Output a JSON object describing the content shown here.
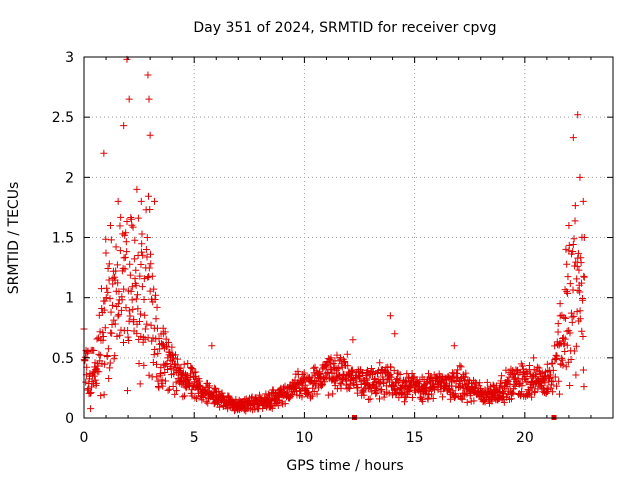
{
  "chart_data": {
    "type": "scatter",
    "title": "Day 351 of 2024, SRMTID for receiver cpvg",
    "xlabel": "GPS time / hours",
    "ylabel": "SRMTID / TECUs",
    "xlim": [
      0,
      24
    ],
    "ylim": [
      0,
      3
    ],
    "xticks": [
      0,
      5,
      10,
      15,
      20
    ],
    "yticks": [
      0,
      0.5,
      1,
      1.5,
      2,
      2.5,
      3
    ],
    "xtick_labels": [
      "0",
      "5",
      "10",
      "15",
      "20"
    ],
    "ytick_labels": [
      "0",
      "0.5",
      "1",
      "1.5",
      "2",
      "2.5",
      "3"
    ],
    "grid": true,
    "marker": "+",
    "color": "#e00000",
    "series": [
      {
        "name": "SRMTID",
        "profile": [
          [
            0.0,
            0.35
          ],
          [
            0.5,
            0.4
          ],
          [
            0.8,
            0.7
          ],
          [
            1.0,
            0.95
          ],
          [
            1.3,
            0.85
          ],
          [
            1.6,
            0.9
          ],
          [
            1.8,
            1.3
          ],
          [
            2.0,
            1.2
          ],
          [
            2.3,
            1.0
          ],
          [
            2.6,
            0.95
          ],
          [
            2.9,
            1.2
          ],
          [
            3.1,
            0.9
          ],
          [
            3.4,
            0.55
          ],
          [
            3.8,
            0.45
          ],
          [
            4.3,
            0.35
          ],
          [
            5.0,
            0.28
          ],
          [
            5.5,
            0.24
          ],
          [
            6.0,
            0.17
          ],
          [
            6.5,
            0.13
          ],
          [
            7.0,
            0.1
          ],
          [
            7.5,
            0.12
          ],
          [
            8.0,
            0.14
          ],
          [
            8.5,
            0.16
          ],
          [
            9.0,
            0.2
          ],
          [
            9.5,
            0.24
          ],
          [
            10.0,
            0.27
          ],
          [
            10.5,
            0.31
          ],
          [
            11.0,
            0.35
          ],
          [
            11.5,
            0.35
          ],
          [
            12.0,
            0.38
          ],
          [
            12.3,
            0.32
          ],
          [
            12.8,
            0.3
          ],
          [
            13.3,
            0.3
          ],
          [
            13.8,
            0.35
          ],
          [
            14.3,
            0.28
          ],
          [
            15.0,
            0.26
          ],
          [
            15.5,
            0.25
          ],
          [
            16.0,
            0.27
          ],
          [
            16.5,
            0.28
          ],
          [
            17.0,
            0.3
          ],
          [
            17.5,
            0.24
          ],
          [
            18.0,
            0.2
          ],
          [
            18.5,
            0.2
          ],
          [
            19.0,
            0.25
          ],
          [
            19.5,
            0.3
          ],
          [
            20.0,
            0.32
          ],
          [
            20.5,
            0.3
          ],
          [
            21.0,
            0.3
          ],
          [
            21.4,
            0.45
          ],
          [
            21.7,
            0.7
          ],
          [
            22.0,
            0.9
          ],
          [
            22.3,
            1.1
          ],
          [
            22.6,
            1.0
          ],
          [
            22.7,
            0.8
          ]
        ],
        "peaks": [
          [
            0.9,
            2.2
          ],
          [
            1.2,
            1.6
          ],
          [
            1.55,
            1.8
          ],
          [
            1.8,
            2.43
          ],
          [
            1.95,
            2.98
          ],
          [
            2.05,
            2.65
          ],
          [
            2.4,
            1.9
          ],
          [
            2.6,
            1.8
          ],
          [
            2.9,
            2.85
          ],
          [
            2.95,
            2.65
          ],
          [
            3.0,
            2.35
          ],
          [
            3.2,
            1.8
          ],
          [
            3.6,
            0.7
          ],
          [
            5.8,
            0.6
          ],
          [
            12.2,
            0.65
          ],
          [
            13.9,
            0.85
          ],
          [
            14.1,
            0.7
          ],
          [
            16.8,
            0.6
          ],
          [
            20.4,
            0.5
          ],
          [
            21.6,
            0.95
          ],
          [
            21.9,
            1.05
          ],
          [
            22.0,
            1.6
          ],
          [
            22.2,
            2.33
          ],
          [
            22.4,
            2.52
          ],
          [
            22.5,
            2.0
          ],
          [
            22.65,
            1.8
          ],
          [
            22.7,
            1.5
          ]
        ],
        "gaps": [
          [
            12.25,
            12.3
          ],
          [
            21.3,
            21.35
          ]
        ],
        "count": 1500,
        "seed": 351
      }
    ]
  }
}
